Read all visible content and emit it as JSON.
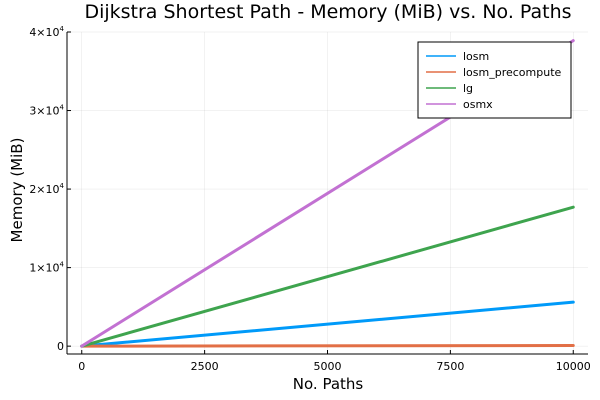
{
  "chart_data": {
    "type": "line",
    "title": "Dijkstra Shortest Path - Memory (MiB) vs. No. Paths",
    "xlabel": "No. Paths",
    "ylabel": "Memory (MiB)",
    "xlim": [
      -300,
      10300
    ],
    "ylim": [
      -1000,
      40000
    ],
    "xticks": [
      0,
      2500,
      5000,
      7500,
      10000
    ],
    "xtick_labels": [
      "0",
      "2500",
      "5000",
      "7500",
      "10000"
    ],
    "yticks": [
      0,
      10000,
      20000,
      30000,
      40000
    ],
    "ytick_labels": [
      {
        "mant": "0",
        "exp": ""
      },
      {
        "mant": "1×10",
        "exp": "4"
      },
      {
        "mant": "2×10",
        "exp": "4"
      },
      {
        "mant": "3×10",
        "exp": "4"
      },
      {
        "mant": "4×10",
        "exp": "4"
      }
    ],
    "grid": true,
    "legend_position": "top-right",
    "series": [
      {
        "name": "losm",
        "color": "#009af9",
        "x": [
          0,
          10000
        ],
        "y": [
          0,
          5600
        ]
      },
      {
        "name": "losm_precompute",
        "color": "#e26f46",
        "x": [
          0,
          10000
        ],
        "y": [
          0,
          80
        ]
      },
      {
        "name": "lg",
        "color": "#3ea44e",
        "x": [
          0,
          10000
        ],
        "y": [
          0,
          17700
        ]
      },
      {
        "name": "osmx",
        "color": "#c271d2",
        "x": [
          0,
          10000
        ],
        "y": [
          0,
          38900
        ]
      }
    ]
  }
}
